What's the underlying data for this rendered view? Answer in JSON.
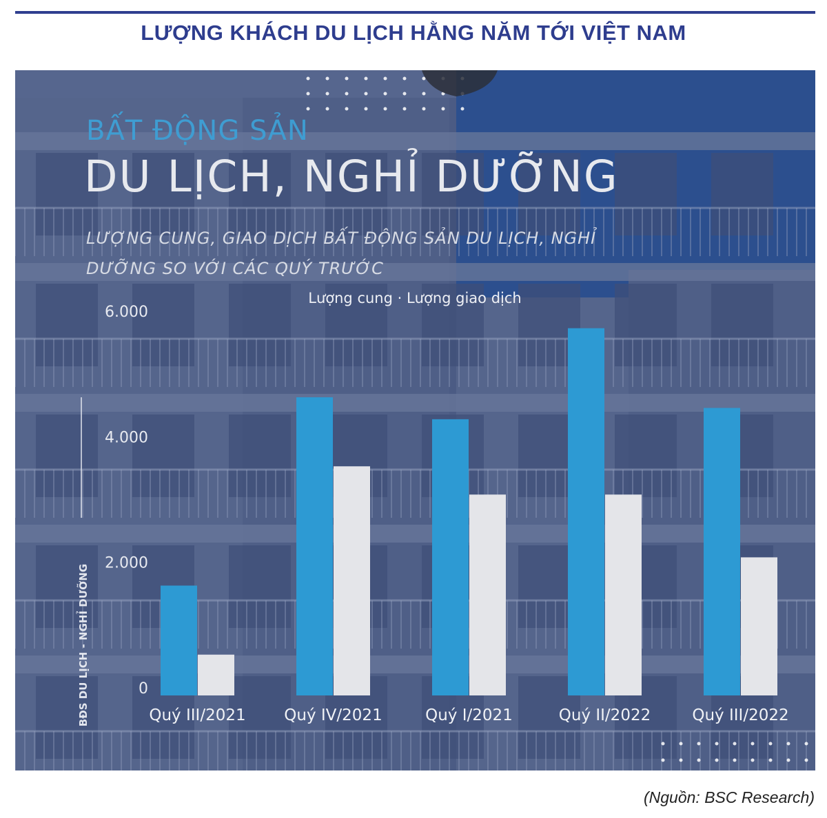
{
  "page_title": "LƯỢNG KHÁCH DU LỊCH HẰNG NĂM TỚI VIỆT NAM",
  "source": "(Nguồn: BSC Research)",
  "colors": {
    "title": "#2e3d8e",
    "supply_bar": "#2d9ad3",
    "transaction_bar": "#e4e5e9",
    "panel_bg": "#4e5f87"
  },
  "chart_data": {
    "type": "bar",
    "kicker": "BẤT ĐỘNG SẢN",
    "title": "DU LỊCH, NGHỈ DƯỠNG",
    "subtitle": "LƯỢNG CUNG, GIAO DỊCH BẤT ĐỘNG SẢN DU LỊCH, NGHỈ DƯỠNG SO VỚI CÁC QUÝ TRƯỚC",
    "ylabel": "BĐS DU LỊCH - NGHỈ DƯỠNG",
    "ylim": [
      0,
      6000
    ],
    "yticks": [
      "0",
      "2.000",
      "4.000",
      "6.000"
    ],
    "legend_placement": "top-center",
    "categories": [
      "Quý III/2021",
      "Quý IV/2021",
      "Quý I/2021",
      "Quý II/2022",
      "Quý III/2022"
    ],
    "series": [
      {
        "name": "Lượng cung",
        "values": [
          1750,
          4750,
          4400,
          5850,
          4580
        ]
      },
      {
        "name": "Lượng giao dịch",
        "values": [
          650,
          3650,
          3200,
          3200,
          2200
        ]
      }
    ]
  }
}
